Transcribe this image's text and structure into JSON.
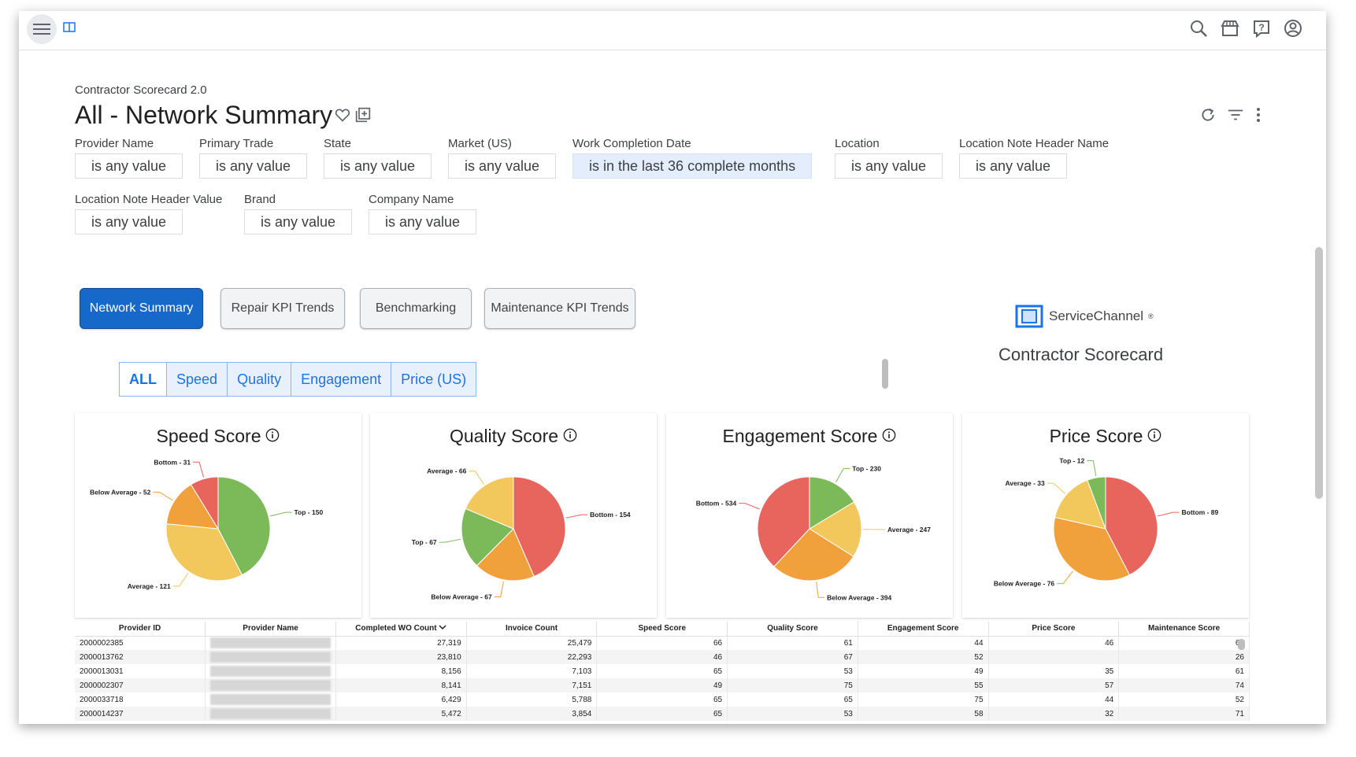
{
  "topbar": {
    "icons": [
      "menu-icon",
      "book-icon",
      "search-icon",
      "marketplace-icon",
      "help-icon",
      "account-icon"
    ]
  },
  "breadcrumb": "Contractor Scorecard 2.0",
  "title": "All - Network Summary",
  "filters": [
    {
      "label": "Provider Name",
      "value": "is any value"
    },
    {
      "label": "Primary Trade",
      "value": "is any value"
    },
    {
      "label": "State",
      "value": "is any value"
    },
    {
      "label": "Market (US)",
      "value": "is any value"
    },
    {
      "label": "Work Completion Date",
      "value": "is in the last 36 complete months"
    },
    {
      "label": "Location",
      "value": "is any value"
    },
    {
      "label": "Location Note Header Name",
      "value": "is any value"
    },
    {
      "label": "Location Note Header Value",
      "value": "is any value"
    },
    {
      "label": "Brand",
      "value": "is any value"
    },
    {
      "label": "Company Name",
      "value": "is any value"
    }
  ],
  "dash_tabs": [
    "Network Summary",
    "Repair KPI Trends",
    "Benchmarking",
    "Maintenance KPI Trends"
  ],
  "brand": {
    "name": "ServiceChannel",
    "mark": "®",
    "subtitle": "Contractor Scorecard"
  },
  "sub_tabs": [
    "ALL",
    "Speed",
    "Quality",
    "Engagement",
    "Price (US)"
  ],
  "colors": {
    "top": "#7cba59",
    "average": "#f2c75c",
    "below_average": "#f0a13c",
    "bottom": "#e8655e",
    "accent": "#1769c9"
  },
  "chart_data": [
    {
      "type": "pie",
      "title": "Speed Score",
      "slices": [
        {
          "label": "Top",
          "value": 150
        },
        {
          "label": "Average",
          "value": 121
        },
        {
          "label": "Below Average",
          "value": 52
        },
        {
          "label": "Bottom",
          "value": 31
        }
      ]
    },
    {
      "type": "pie",
      "title": "Quality Score",
      "slices": [
        {
          "label": "Bottom",
          "value": 154
        },
        {
          "label": "Below Average",
          "value": 67
        },
        {
          "label": "Top",
          "value": 67
        },
        {
          "label": "Average",
          "value": 66
        }
      ]
    },
    {
      "type": "pie",
      "title": "Engagement Score",
      "slices": [
        {
          "label": "Top",
          "value": 230
        },
        {
          "label": "Average",
          "value": 247
        },
        {
          "label": "Below Average",
          "value": 394
        },
        {
          "label": "Bottom",
          "value": 534
        }
      ]
    },
    {
      "type": "pie",
      "title": "Price Score",
      "slices": [
        {
          "label": "Bottom",
          "value": 89
        },
        {
          "label": "Below Average",
          "value": 76
        },
        {
          "label": "Average",
          "value": 33
        },
        {
          "label": "Top",
          "value": 12
        }
      ]
    }
  ],
  "table": {
    "columns": [
      "Provider ID",
      "Provider Name",
      "Completed WO Count",
      "Invoice Count",
      "Speed Score",
      "Quality Score",
      "Engagement Score",
      "Price Score",
      "Maintenance Score"
    ],
    "rows": [
      [
        "2000002385",
        "",
        "27,319",
        "25,479",
        "66",
        "61",
        "44",
        "46",
        "60"
      ],
      [
        "2000013762",
        "",
        "23,810",
        "22,293",
        "46",
        "67",
        "52",
        "",
        "26"
      ],
      [
        "2000013031",
        "",
        "8,156",
        "7,103",
        "65",
        "53",
        "49",
        "35",
        "61"
      ],
      [
        "2000002307",
        "",
        "8,141",
        "7,151",
        "49",
        "75",
        "55",
        "57",
        "74"
      ],
      [
        "2000033718",
        "",
        "6,429",
        "5,788",
        "65",
        "65",
        "75",
        "44",
        "52"
      ],
      [
        "2000014237",
        "",
        "5,472",
        "3,854",
        "65",
        "53",
        "58",
        "32",
        "71"
      ]
    ]
  }
}
